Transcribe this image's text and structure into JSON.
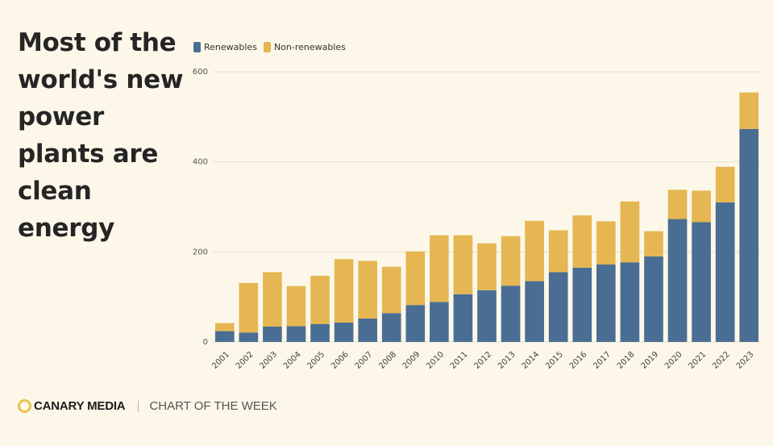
{
  "headline": "Most of the world's new power plants are clean energy",
  "footer": {
    "brand": "CANARY MEDIA",
    "tagline": "CHART OF THE WEEK"
  },
  "colors": {
    "renewables": "#4a6e93",
    "non_renewables": "#e5b652",
    "background": "#fcf7e8",
    "grid": "#e9e2cf"
  },
  "chart_data": {
    "type": "bar",
    "stacked": true,
    "title": "",
    "xlabel": "",
    "ylabel": "",
    "ylim": [
      0,
      600
    ],
    "yticks": [
      0,
      200,
      400,
      600
    ],
    "grid": true,
    "legend_position": "top-left",
    "categories": [
      "2001",
      "2002",
      "2003",
      "2004",
      "2005",
      "2006",
      "2007",
      "2008",
      "2009",
      "2010",
      "2011",
      "2012",
      "2013",
      "2014",
      "2015",
      "2016",
      "2017",
      "2018",
      "2019",
      "2020",
      "2021",
      "2022",
      "2023"
    ],
    "series": [
      {
        "name": "Renewables",
        "color": "#4a6e93",
        "values": [
          24,
          21,
          34,
          35,
          40,
          43,
          52,
          64,
          82,
          89,
          106,
          115,
          125,
          135,
          155,
          165,
          172,
          177,
          190,
          273,
          266,
          310,
          473
        ]
      },
      {
        "name": "Non-renewables",
        "color": "#e5b652",
        "values": [
          18,
          110,
          121,
          89,
          107,
          141,
          128,
          103,
          119,
          148,
          131,
          104,
          110,
          134,
          93,
          116,
          96,
          135,
          56,
          65,
          70,
          79,
          81
        ]
      }
    ]
  }
}
